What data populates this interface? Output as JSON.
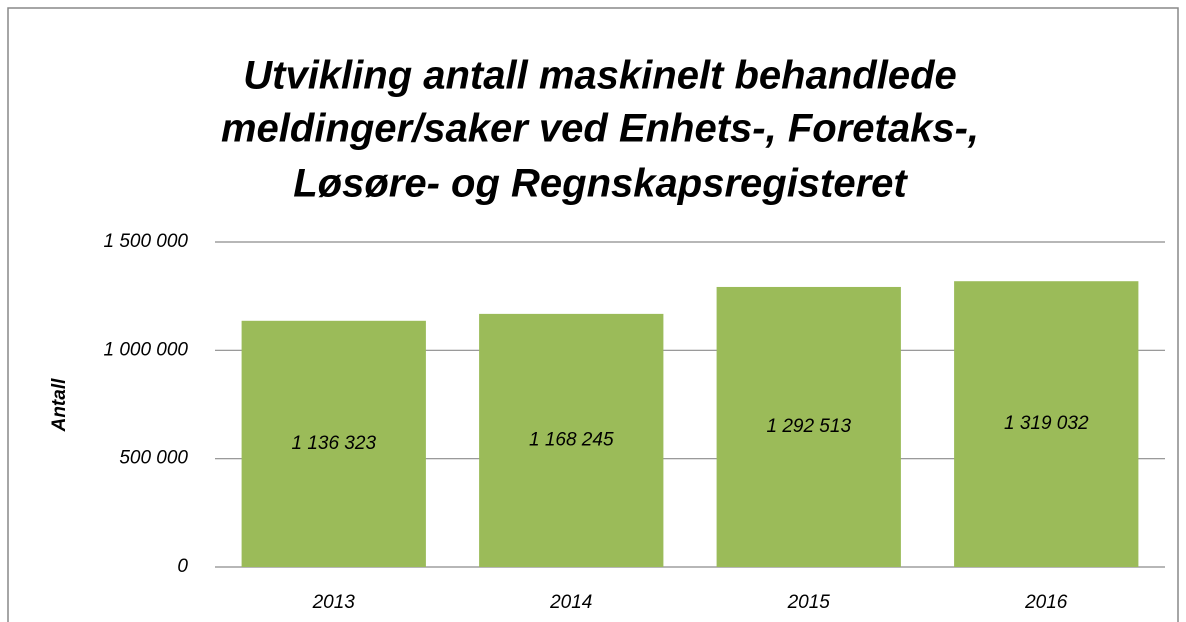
{
  "chart_data": {
    "type": "bar",
    "title": [
      "Utvikling antall maskinelt behandlede",
      "meldinger/saker ved Enhets-, Foretaks-,",
      "Løsøre- og Regnskapsregisteret"
    ],
    "y_label": "Antall",
    "categories": [
      "2013",
      "2014",
      "2015",
      "2016"
    ],
    "values": [
      1136323,
      1168245,
      1292513,
      1319032
    ],
    "value_labels": [
      "1 136 323",
      "1 168 245",
      "1 292 513",
      "1 319 032"
    ],
    "color": "#9bbb59",
    "ylim": [
      0,
      1500000
    ],
    "yticks": [
      0,
      {
        "value": 500000,
        "label": "500 000"
      },
      {
        "value": 1000000,
        "label": "1 000 000"
      },
      {
        "value": 1500000,
        "label": "1 500 000"
      }
    ],
    "grid": true
  }
}
